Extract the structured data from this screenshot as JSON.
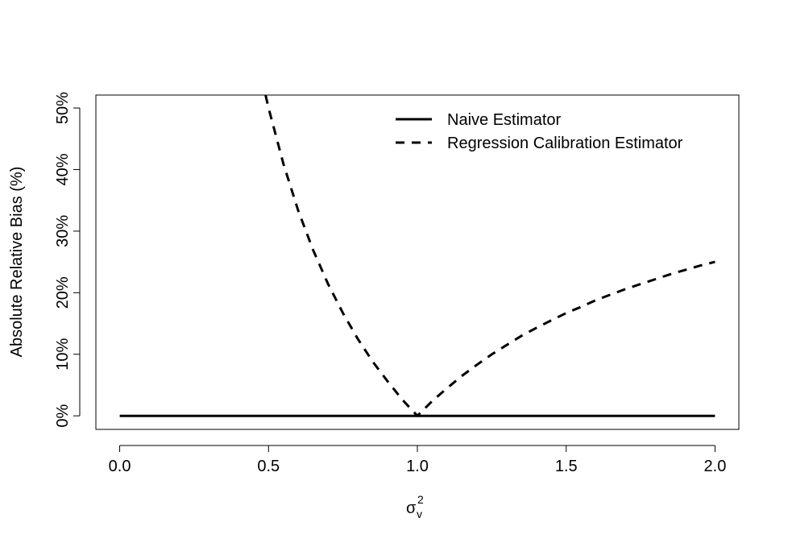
{
  "chart_data": {
    "type": "line",
    "title": "",
    "xlabel": "σ",
    "xlabel_sup": "2",
    "xlabel_sub": "v",
    "ylabel": "Absolute Relative Bias (%)",
    "xlim": [
      -0.08,
      2.08
    ],
    "ylim": [
      -2.2,
      52.1
    ],
    "x_ticks": [
      0.0,
      0.5,
      1.0,
      1.5,
      2.0
    ],
    "x_tick_labels": [
      "0.0",
      "0.5",
      "1.0",
      "1.5",
      "2.0"
    ],
    "y_ticks": [
      0,
      10,
      20,
      30,
      40,
      50
    ],
    "y_tick_labels": [
      "0%",
      "10%",
      "20%",
      "30%",
      "40%",
      "50%"
    ],
    "grid": false,
    "legend_position": "top-right",
    "series": [
      {
        "name": "Naive Estimator",
        "style": "solid",
        "color": "#000000",
        "x": [
          0.0,
          0.5,
          1.0,
          1.5,
          2.0
        ],
        "y": [
          0,
          0,
          0,
          0,
          0
        ]
      },
      {
        "name": "Regression Calibration Estimator",
        "style": "dashed",
        "color": "#000000",
        "x": [
          0.49,
          0.5,
          0.55,
          0.6,
          0.65,
          0.7,
          0.75,
          0.8,
          0.85,
          0.9,
          0.95,
          1.0,
          1.05,
          1.1,
          1.15,
          1.2,
          1.25,
          1.3,
          1.35,
          1.4,
          1.45,
          1.5,
          1.55,
          1.6,
          1.65,
          1.7,
          1.75,
          1.8,
          1.85,
          1.9,
          1.95,
          2.0
        ],
        "y": [
          52.1,
          50.0,
          40.9,
          33.3,
          26.9,
          21.4,
          16.7,
          12.5,
          8.8,
          5.6,
          2.6,
          0.0,
          2.4,
          4.5,
          6.5,
          8.3,
          10.0,
          11.5,
          13.0,
          14.3,
          15.5,
          16.7,
          17.7,
          18.8,
          19.7,
          20.6,
          21.4,
          22.2,
          23.0,
          23.7,
          24.4,
          25.0
        ]
      }
    ]
  }
}
